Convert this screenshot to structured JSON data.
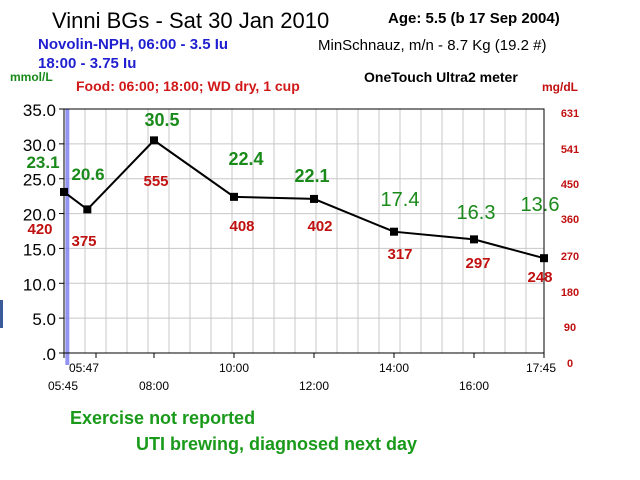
{
  "title": "Vinni BGs - Sat 30 Jan 2010",
  "age": "Age: 5.5 (b 17 Sep 2004)",
  "insulin": [
    "Novolin-NPH, 06:00 - 3.5 Iu",
    "18:00 - 3.75 Iu"
  ],
  "dog": "MinSchnauz, m/n - 8.7 Kg (19.2 #)",
  "meter": "OneTouch Ultra2 meter",
  "food": "Food: 06:00; 18:00; WD dry, 1 cup",
  "notes": [
    "Exercise not reported",
    "UTI brewing, diagnosed next day"
  ],
  "colors": {
    "mmol": "#1a8a1a",
    "mgdl": "#c01010",
    "line": "#000000",
    "insulin_marker": "#8080f0",
    "grid": "#c8c8c8"
  },
  "chart_data": {
    "type": "line",
    "grid": true,
    "x_axis": {
      "range": [
        "05:45",
        "17:45"
      ],
      "tick_labels": [
        "05:47",
        "05:45",
        "08:00",
        "10:00",
        "12:00",
        "14:00",
        "16:00",
        "17:45"
      ]
    },
    "y_left": {
      "label": "mmol/L",
      "range": [
        0,
        35
      ],
      "tick_labels": [
        "35.0",
        "30.0",
        "25.0",
        "20.0",
        "15.0",
        "10.0",
        "5.0",
        ".0"
      ]
    },
    "y_right": {
      "label": "mg/dL",
      "range": [
        0,
        631
      ],
      "tick_labels": [
        "631",
        "541",
        "450",
        "360",
        "270",
        "180",
        "90",
        "0"
      ]
    },
    "insulin_time": "05:47",
    "points": [
      {
        "time": "05:45",
        "mmol": "23.1",
        "mgdl": "420",
        "y": 23.1
      },
      {
        "time": "06:20",
        "mmol": "20.6",
        "mgdl": "375",
        "y": 20.6
      },
      {
        "time": "08:00",
        "mmol": "30.5",
        "mgdl": "555",
        "y": 30.5
      },
      {
        "time": "10:00",
        "mmol": "22.4",
        "mgdl": "408",
        "y": 22.4
      },
      {
        "time": "12:00",
        "mmol": "22.1",
        "mgdl": "402",
        "y": 22.1
      },
      {
        "time": "14:00",
        "mmol": "17.4",
        "mgdl": "317",
        "y": 17.4
      },
      {
        "time": "16:00",
        "mmol": "16.3",
        "mgdl": "297",
        "y": 16.3
      },
      {
        "time": "17:45",
        "mmol": "13.6",
        "mgdl": "248",
        "y": 13.6
      }
    ]
  }
}
